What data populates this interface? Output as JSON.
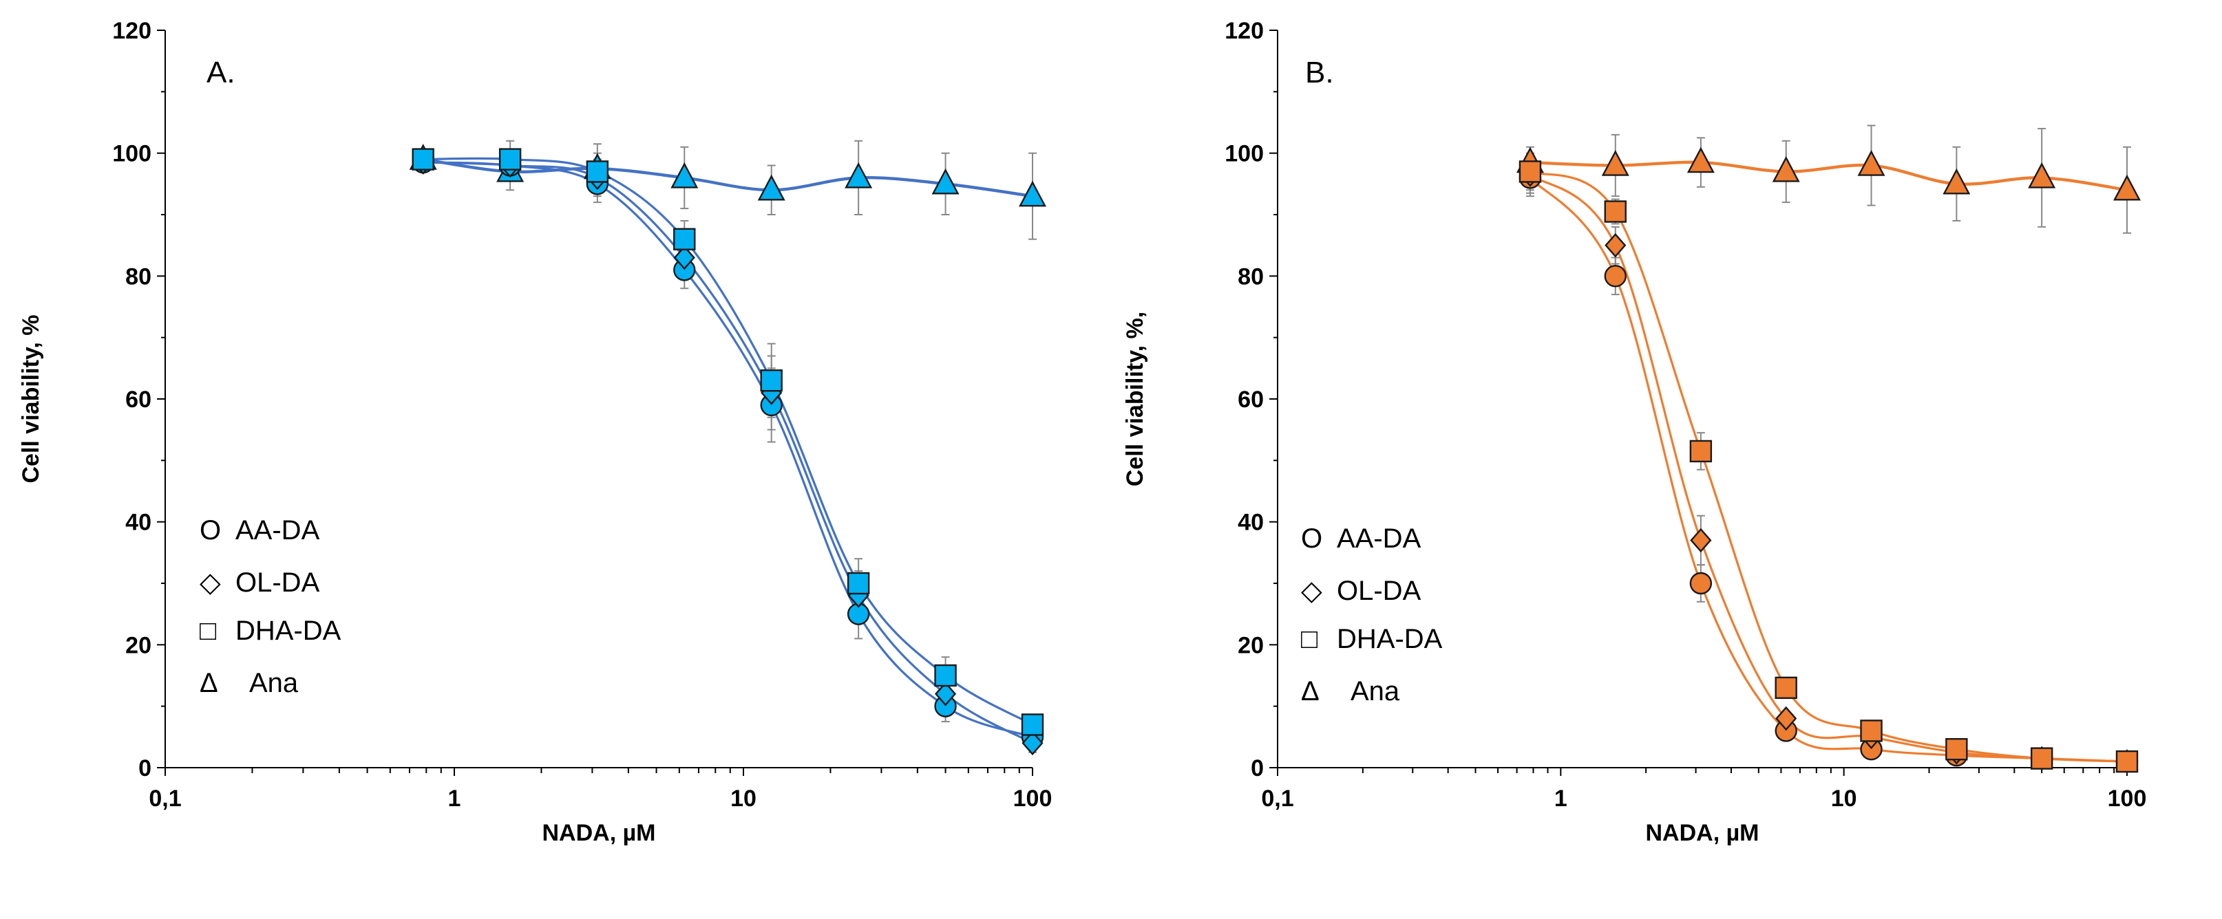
{
  "chart_data": [
    {
      "type": "scatter",
      "panel_label": "A.",
      "xlabel": "NADA, µM",
      "ylabel": "Cell viability, %",
      "xscale": "log",
      "xlim": [
        0.1,
        100
      ],
      "ylim": [
        0,
        120
      ],
      "xticks": [
        "0,1",
        "1",
        "10",
        "100"
      ],
      "yticks": [
        "0",
        "20",
        "40",
        "60",
        "80",
        "100",
        "120"
      ],
      "color": "#00B0F0",
      "line_color": "#4472C4",
      "legend_position": "bottom-left",
      "x": [
        0.78,
        1.56,
        3.125,
        6.25,
        12.5,
        25,
        50,
        100
      ],
      "series": [
        {
          "name": "AA-DA",
          "marker": "circle",
          "symbol": "O",
          "values": [
            98.5,
            98,
            95,
            81,
            59,
            25,
            10,
            5
          ],
          "errors": [
            1.5,
            2,
            3,
            3,
            6,
            4,
            2.5,
            1.5
          ]
        },
        {
          "name": "OL-DA",
          "marker": "diamond",
          "symbol": "◇",
          "values": [
            98.5,
            98,
            96,
            83,
            61,
            28,
            12,
            4
          ],
          "errors": [
            1.5,
            2,
            3,
            3,
            6,
            4,
            2.5,
            1.5
          ]
        },
        {
          "name": "DHA-DA",
          "marker": "square",
          "symbol": "□",
          "values": [
            99,
            99,
            97,
            86,
            63,
            30,
            15,
            7
          ],
          "errors": [
            1.5,
            3,
            3,
            3,
            6,
            4,
            3,
            1.5
          ]
        },
        {
          "name": "Ana",
          "marker": "triangle",
          "symbol": "Δ",
          "values": [
            99,
            97,
            97.5,
            96,
            94,
            96,
            95,
            93
          ],
          "errors": [
            1.5,
            3,
            4,
            5,
            4,
            6,
            5,
            7
          ]
        }
      ]
    },
    {
      "type": "scatter",
      "panel_label": "B.",
      "xlabel": "NADA, µM",
      "ylabel": "Cell viability, %,",
      "xscale": "log",
      "xlim": [
        0.1,
        100
      ],
      "ylim": [
        0,
        120
      ],
      "xticks": [
        "0,1",
        "1",
        "10",
        "100"
      ],
      "yticks": [
        "0",
        "20",
        "40",
        "60",
        "80",
        "100",
        "120"
      ],
      "color": "#ED7D31",
      "line_color": "#ED7D31",
      "legend_position": "bottom-left",
      "x": [
        0.78,
        1.56,
        3.125,
        6.25,
        12.5,
        25,
        50,
        100
      ],
      "series": [
        {
          "name": "AA-DA",
          "marker": "circle",
          "symbol": "O",
          "values": [
            96,
            80,
            30,
            6,
            3,
            2,
            1.5,
            1
          ],
          "errors": [
            3,
            3,
            3,
            1,
            1,
            1,
            0.5,
            0.5
          ]
        },
        {
          "name": "OL-DA",
          "marker": "diamond",
          "symbol": "◇",
          "values": [
            96.5,
            85,
            37,
            8,
            5,
            2.5,
            1.5,
            1
          ],
          "errors": [
            3,
            3,
            4,
            1,
            1,
            1,
            0.5,
            0.5
          ]
        },
        {
          "name": "DHA-DA",
          "marker": "square",
          "symbol": "□",
          "values": [
            97,
            90.5,
            51.5,
            13,
            6,
            3,
            1.5,
            1
          ],
          "errors": [
            3,
            2,
            3,
            1,
            1,
            1,
            0.5,
            0.5
          ]
        },
        {
          "name": "Ana",
          "marker": "triangle",
          "symbol": "Δ",
          "values": [
            98.5,
            98,
            98.5,
            97,
            98,
            95,
            96,
            94
          ],
          "errors": [
            2.5,
            5,
            4,
            5,
            6.5,
            6,
            8,
            7
          ]
        }
      ]
    }
  ]
}
